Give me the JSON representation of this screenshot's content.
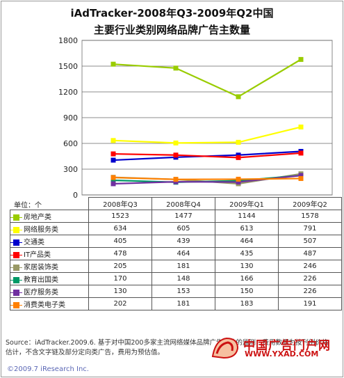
{
  "title_line1": "iAdTracker-2008年Q3-2009年Q2中国",
  "title_line2": "主要行业类别网络品牌广告主数量",
  "unit_label": "单位：个",
  "source_text": "Source：iAdTracker.2009.6. 基于对中国200多家主流网络媒体品牌广告投放的监测，费用数据为按刊例价格估计，不含文字链及部分定向类广告，费用为预估值。",
  "copyright": "©2009.7 iResearch Inc.",
  "watermark": {
    "main": "中国广告门户网",
    "url": "WWW.YXAD.COM"
  },
  "chart_data": {
    "type": "line",
    "title": "iAdTracker-2008年Q3-2009年Q2中国 主要行业类别网络品牌广告主数量",
    "categories": [
      "2008年Q3",
      "2008年Q4",
      "2009年Q1",
      "2009年Q2"
    ],
    "ylim": [
      0,
      1800
    ],
    "yticks": [
      0,
      300,
      600,
      900,
      1200,
      1500,
      1800
    ],
    "grid": true,
    "series": [
      {
        "name": "房地产类",
        "color": "#99cc00",
        "values": [
          1523,
          1477,
          1144,
          1578
        ]
      },
      {
        "name": "网络服务类",
        "color": "#ffff00",
        "values": [
          634,
          605,
          613,
          791
        ]
      },
      {
        "name": "交通类",
        "color": "#0000cc",
        "values": [
          405,
          439,
          464,
          507
        ]
      },
      {
        "name": "IT产品类",
        "color": "#ff0000",
        "values": [
          478,
          464,
          435,
          487
        ]
      },
      {
        "name": "家居装饰类",
        "color": "#999966",
        "values": [
          205,
          181,
          130,
          246
        ]
      },
      {
        "name": "教育出国类",
        "color": "#009966",
        "values": [
          170,
          148,
          166,
          226
        ]
      },
      {
        "name": "医疗服务类",
        "color": "#7030a0",
        "values": [
          130,
          153,
          150,
          226
        ]
      },
      {
        "name": "消费类电子类",
        "color": "#ff8000",
        "values": [
          202,
          181,
          183,
          191
        ]
      }
    ]
  }
}
